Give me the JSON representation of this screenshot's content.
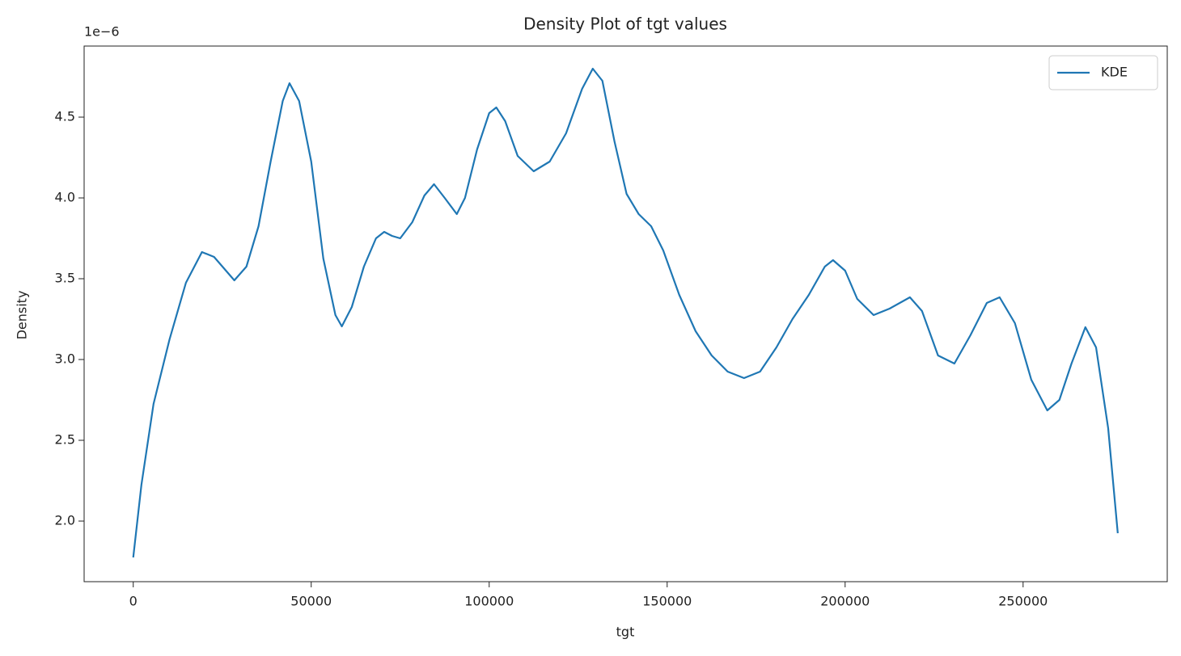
{
  "chart_data": {
    "type": "line",
    "title": "Density Plot of tgt values",
    "xlabel": "tgt",
    "ylabel": "Density",
    "y_offset_label": "1e−6",
    "x": [
      0,
      2300,
      5700,
      10200,
      14800,
      19300,
      22700,
      28400,
      31800,
      35200,
      38600,
      42000,
      43900,
      46600,
      50000,
      53400,
      56800,
      58600,
      61400,
      64800,
      68200,
      70500,
      72700,
      75000,
      78400,
      81800,
      84500,
      87500,
      90900,
      93200,
      96600,
      100000,
      102000,
      104500,
      108000,
      112500,
      117000,
      121600,
      126100,
      129100,
      131800,
      135200,
      138600,
      142000,
      145500,
      148900,
      153400,
      158000,
      162500,
      167000,
      171600,
      176100,
      180700,
      185200,
      189800,
      194300,
      196600,
      200000,
      203400,
      208000,
      212500,
      218200,
      221600,
      226100,
      230700,
      235200,
      239800,
      243400,
      247700,
      252300,
      256800,
      260200,
      263600,
      267500,
      270500,
      273900,
      276600
    ],
    "series": [
      {
        "name": "KDE",
        "color": "#1f77b4",
        "values": [
          1.775,
          2.225,
          2.725,
          3.125,
          3.475,
          3.665,
          3.635,
          3.49,
          3.575,
          3.825,
          4.225,
          4.6,
          4.71,
          4.6,
          4.225,
          3.625,
          3.275,
          3.205,
          3.325,
          3.575,
          3.75,
          3.79,
          3.765,
          3.75,
          3.85,
          4.015,
          4.085,
          4.0,
          3.9,
          4.0,
          4.3,
          4.525,
          4.56,
          4.475,
          4.26,
          4.165,
          4.225,
          4.4,
          4.675,
          4.8,
          4.725,
          4.35,
          4.025,
          3.9,
          3.825,
          3.675,
          3.4,
          3.175,
          3.025,
          2.925,
          2.885,
          2.925,
          3.075,
          3.25,
          3.4,
          3.575,
          3.615,
          3.55,
          3.375,
          3.275,
          3.315,
          3.385,
          3.3,
          3.025,
          2.975,
          3.15,
          3.35,
          3.385,
          3.225,
          2.875,
          2.685,
          2.75,
          2.975,
          3.2,
          3.075,
          2.575,
          1.925
        ]
      }
    ],
    "xlim": [
      -13800,
      290500
    ],
    "ylim": [
      1.625,
      4.94
    ],
    "xticks": [
      0,
      50000,
      100000,
      150000,
      200000,
      250000
    ],
    "yticks": [
      {
        "value": 2,
        "label": "2.0"
      },
      2.5,
      {
        "value": 3,
        "label": "3.0"
      },
      3.5,
      {
        "value": 4,
        "label": "4.0"
      },
      4.5
    ],
    "legend": "upper right"
  }
}
